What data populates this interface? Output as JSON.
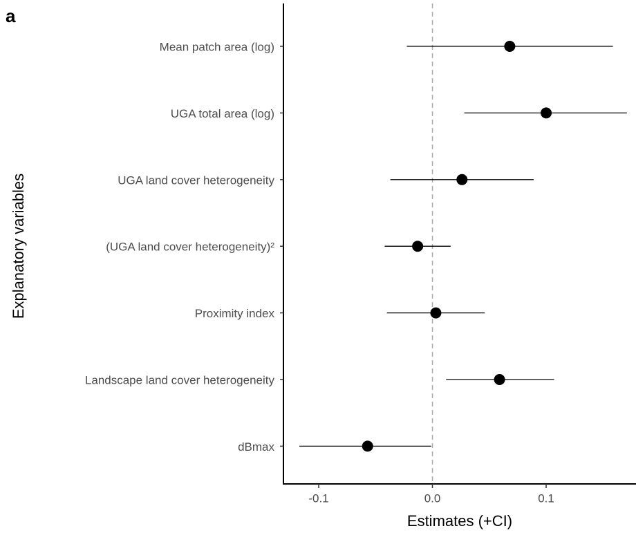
{
  "chart_data": {
    "type": "forest",
    "panel_label": "a",
    "x_label": "Estimates (+CI)",
    "y_label": "Explanatory variables",
    "categories": [
      "Mean patch area (log)",
      "UGA total area (log)",
      "UGA land cover heterogeneity",
      "(UGA land cover heterogeneity)²",
      "Proximity index",
      "Landscape land cover heterogeneity",
      "dBmax"
    ],
    "values": [
      0.068,
      0.1,
      0.026,
      -0.013,
      0.003,
      0.059,
      -0.057
    ],
    "lower": [
      -0.0225,
      0.028,
      -0.037,
      -0.042,
      -0.04,
      0.012,
      -0.117
    ],
    "upper": [
      0.1587,
      0.171,
      0.089,
      0.016,
      0.046,
      0.107,
      -0.001
    ],
    "color": "#000000",
    "xlim": [
      -0.131,
      0.179
    ],
    "xticks": [
      -0.1,
      {
        "value": 0,
        "label": "0.0"
      },
      0.1
    ],
    "ref_line": 0
  }
}
